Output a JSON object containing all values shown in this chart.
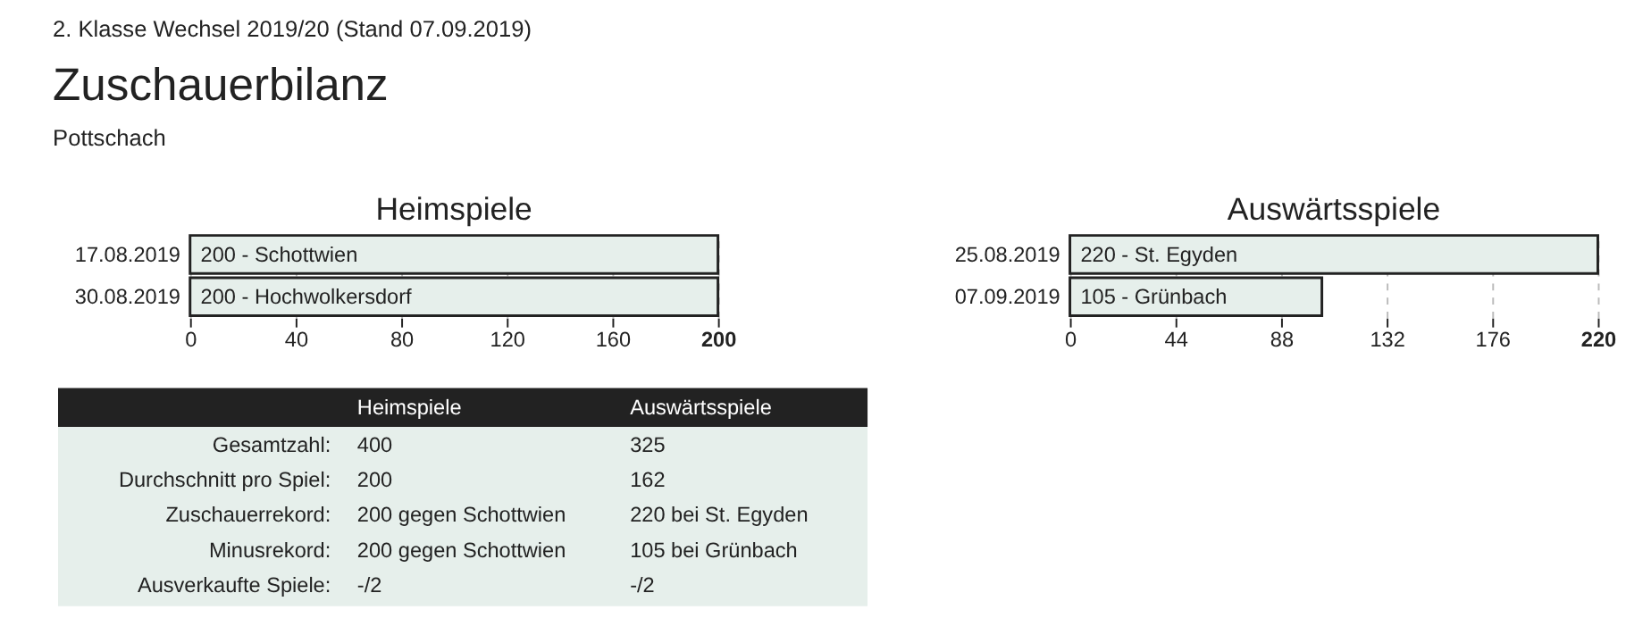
{
  "chart_data": [
    {
      "type": "other",
      "title": "Zuschauerbilanz",
      "annotations": [
        "2. Klasse Wechsel 2019/20 (Stand 07.09.2019)",
        "Pottschach"
      ]
    },
    {
      "type": "bar",
      "orientation": "horizontal",
      "title": "Heimspiele",
      "categories": [
        "17.08.2019",
        "30.08.2019"
      ],
      "values": [
        200,
        200
      ],
      "value_labels": [
        "200 - Schottwien",
        "200 - Hochwolkersdorf"
      ],
      "color": "#e6efeb",
      "xlim": [
        0,
        200
      ],
      "xticks": [
        0,
        40,
        80,
        120,
        160,
        200
      ],
      "grid": "x"
    },
    {
      "type": "bar",
      "orientation": "horizontal",
      "title": "Auswärtsspiele",
      "categories": [
        "25.08.2019",
        "07.09.2019"
      ],
      "values": [
        220,
        105
      ],
      "value_labels": [
        "220 - St. Egyden",
        "105 - Grünbach"
      ],
      "color": "#e6efeb",
      "xlim": [
        0,
        220
      ],
      "xticks": [
        0,
        44,
        88,
        132,
        176,
        220
      ],
      "grid": "x"
    },
    {
      "type": "other",
      "annotations": [
        "Heimspiele",
        "Auswärtsspiele",
        "Gesamtzahl:",
        "400",
        "325",
        "Durchschnitt pro Spiel:",
        "200",
        "162",
        "Zuschauerrekord:",
        "200 gegen Schottwien",
        "220 bei St. Egyden",
        "Minusrekord:",
        "200 gegen Schottwien",
        "105 bei Grünbach",
        "Ausverkaufte Spiele:",
        "-/2",
        "-/2"
      ]
    }
  ]
}
